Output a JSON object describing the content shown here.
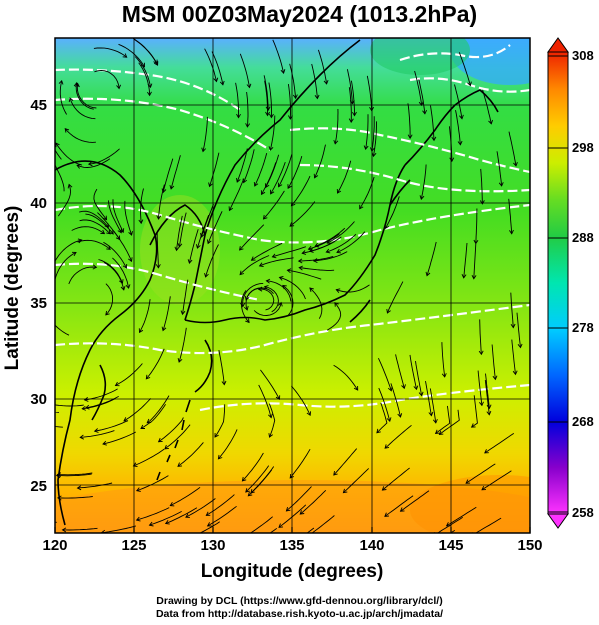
{
  "title": "MSM 00Z03May2024 (1013.2hPa)",
  "x_axis": {
    "label": "Longitude (degrees)",
    "ticks": [
      "120",
      "125",
      "130",
      "135",
      "140",
      "145",
      "150"
    ]
  },
  "y_axis": {
    "label": "Latitude  (degrees)",
    "ticks": [
      "25",
      "30",
      "35",
      "40",
      "45"
    ]
  },
  "colorbar": {
    "labels": [
      "258",
      "268",
      "278",
      "288",
      "298",
      "308"
    ],
    "colors": [
      "#ff33ff",
      "#8800cc",
      "#0000dd",
      "#0066ff",
      "#00ccff",
      "#00e6b0",
      "#22cc44",
      "#66dd22",
      "#ccee00",
      "#ffcc00",
      "#ff8800",
      "#ee2200"
    ]
  },
  "map": {
    "lon_range": [
      120,
      150
    ],
    "lat_range": [
      22.5,
      48
    ],
    "field": "temperature (K)",
    "colors": {
      "land_outline": "#000000",
      "contour": "#ffffff",
      "streamline": "#000000"
    }
  },
  "footer": {
    "line1": "Drawing by DCL (https://www.gfd-dennou.org/library/dcl/)",
    "line2": "Data from http://database.rish.kyoto-u.ac.jp/arch/jmadata/"
  }
}
